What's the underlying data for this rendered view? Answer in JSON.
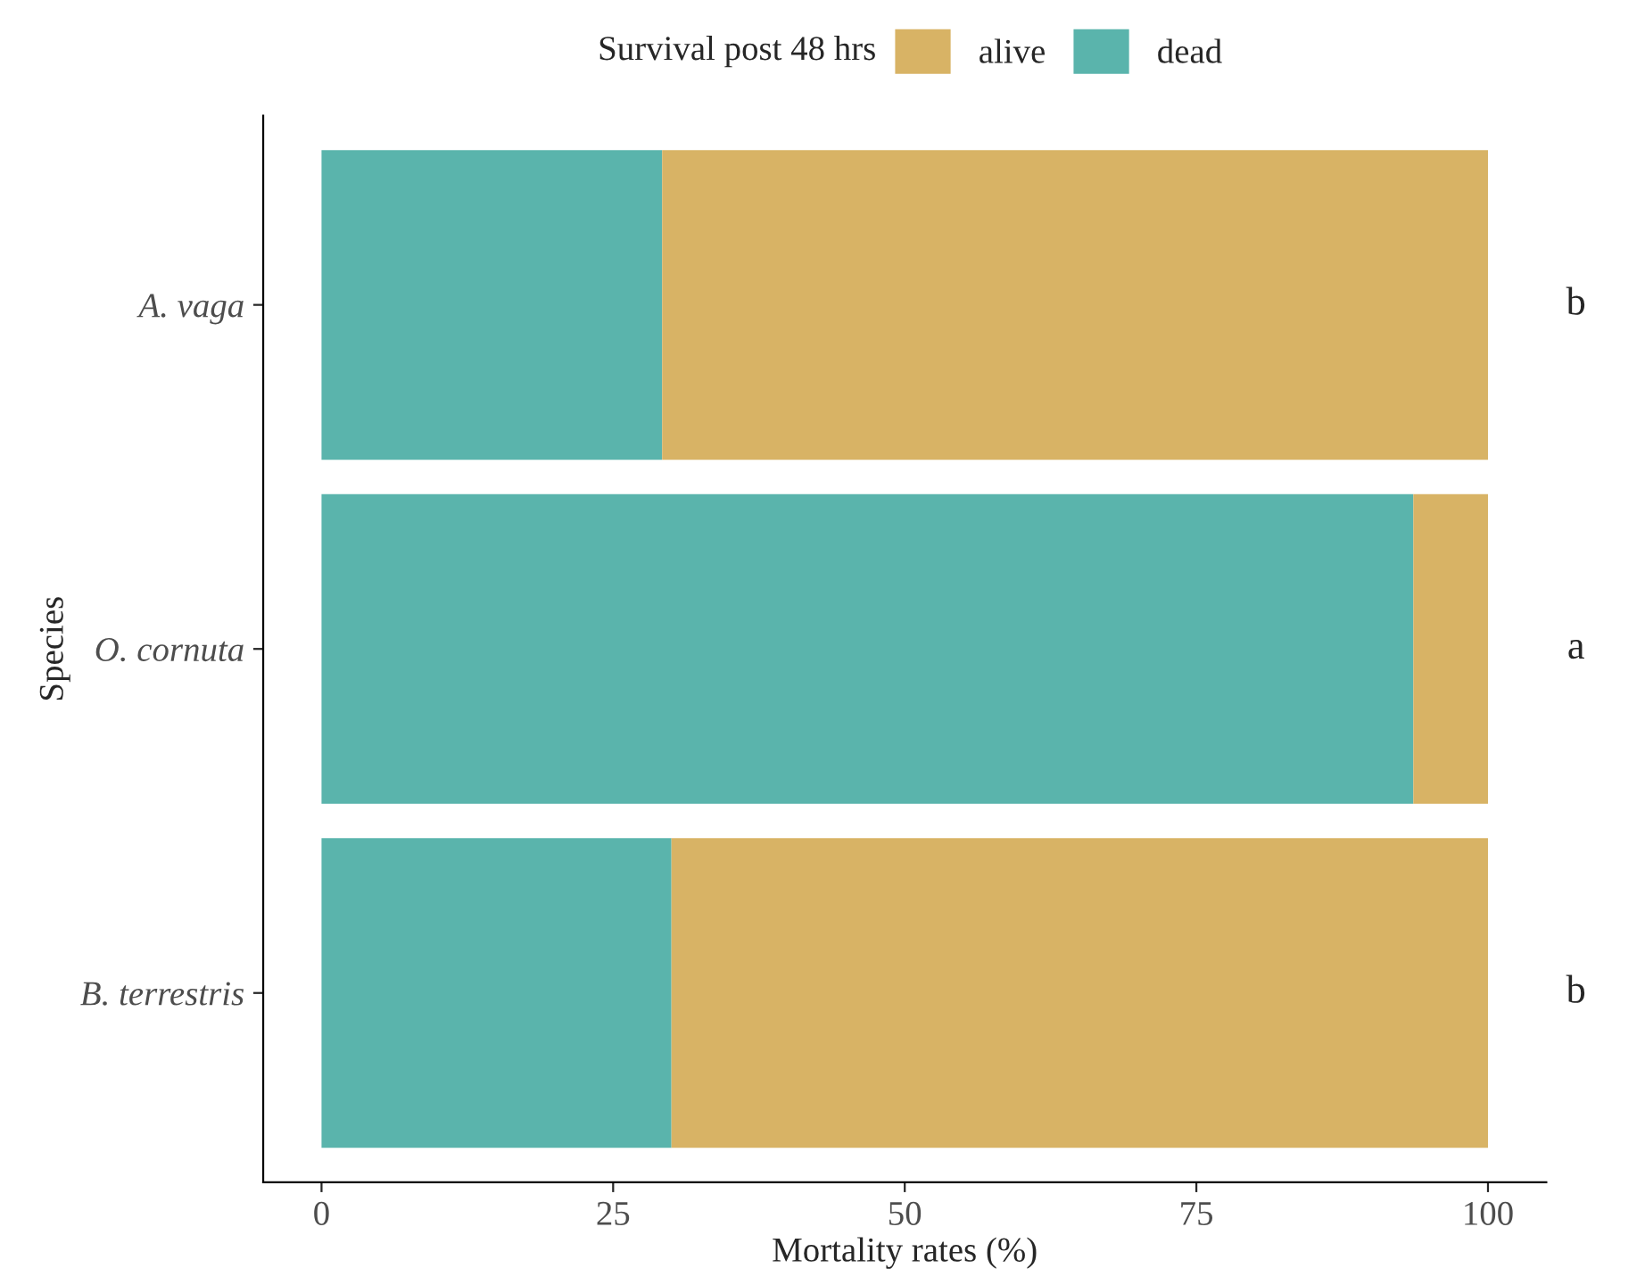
{
  "chart_data": {
    "type": "bar",
    "orientation": "horizontal",
    "stacked": true,
    "xlabel": "Mortality rates (%)",
    "ylabel": "Species",
    "legend_title": "Survival post 48 hrs",
    "legend": "top",
    "categories": [
      "A. vaga",
      "O. cornuta",
      "B. terrestris"
    ],
    "series": [
      {
        "name": "dead",
        "color": "#5ab4ac",
        "values": [
          29.2,
          93.6,
          30.0
        ]
      },
      {
        "name": "alive",
        "color": "#d8b365",
        "values": [
          70.8,
          6.4,
          70.0
        ]
      }
    ],
    "xlim": [
      -5,
      105
    ],
    "xticks": [
      0,
      25,
      50,
      75,
      100
    ],
    "grid": false,
    "annotations": [
      "b",
      "a",
      "b"
    ]
  }
}
